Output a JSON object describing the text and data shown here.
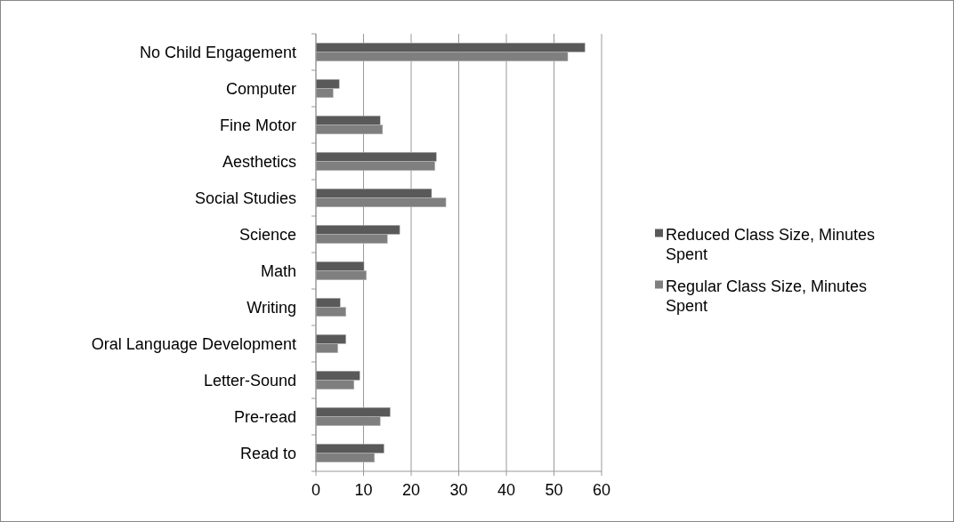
{
  "chart_data": {
    "type": "bar",
    "orientation": "horizontal",
    "categories": [
      "No Child Engagement",
      "Computer",
      "Fine Motor",
      "Aesthetics",
      "Social Studies",
      "Science",
      "Math",
      "Writing",
      "Oral Language Development",
      "Letter-Sound",
      "Pre-read",
      "Read to"
    ],
    "series": [
      {
        "name": "Reduced Class Size, Minutes Spent",
        "color": "#595959",
        "values": [
          56.5,
          4.9,
          13.5,
          25.3,
          24.3,
          17.6,
          10.1,
          5.1,
          6.3,
          9.2,
          15.6,
          14.3
        ]
      },
      {
        "name": "Regular Class Size, Minutes Spent",
        "color": "#7f7f7f",
        "values": [
          52.9,
          3.6,
          14.0,
          25.0,
          27.3,
          15.0,
          10.6,
          6.3,
          4.6,
          8.0,
          13.5,
          12.3
        ]
      }
    ],
    "xlim": [
      0,
      60
    ],
    "xticks": [
      0,
      10,
      20,
      30,
      40,
      50,
      60
    ],
    "grid": "x",
    "legend": "right"
  }
}
